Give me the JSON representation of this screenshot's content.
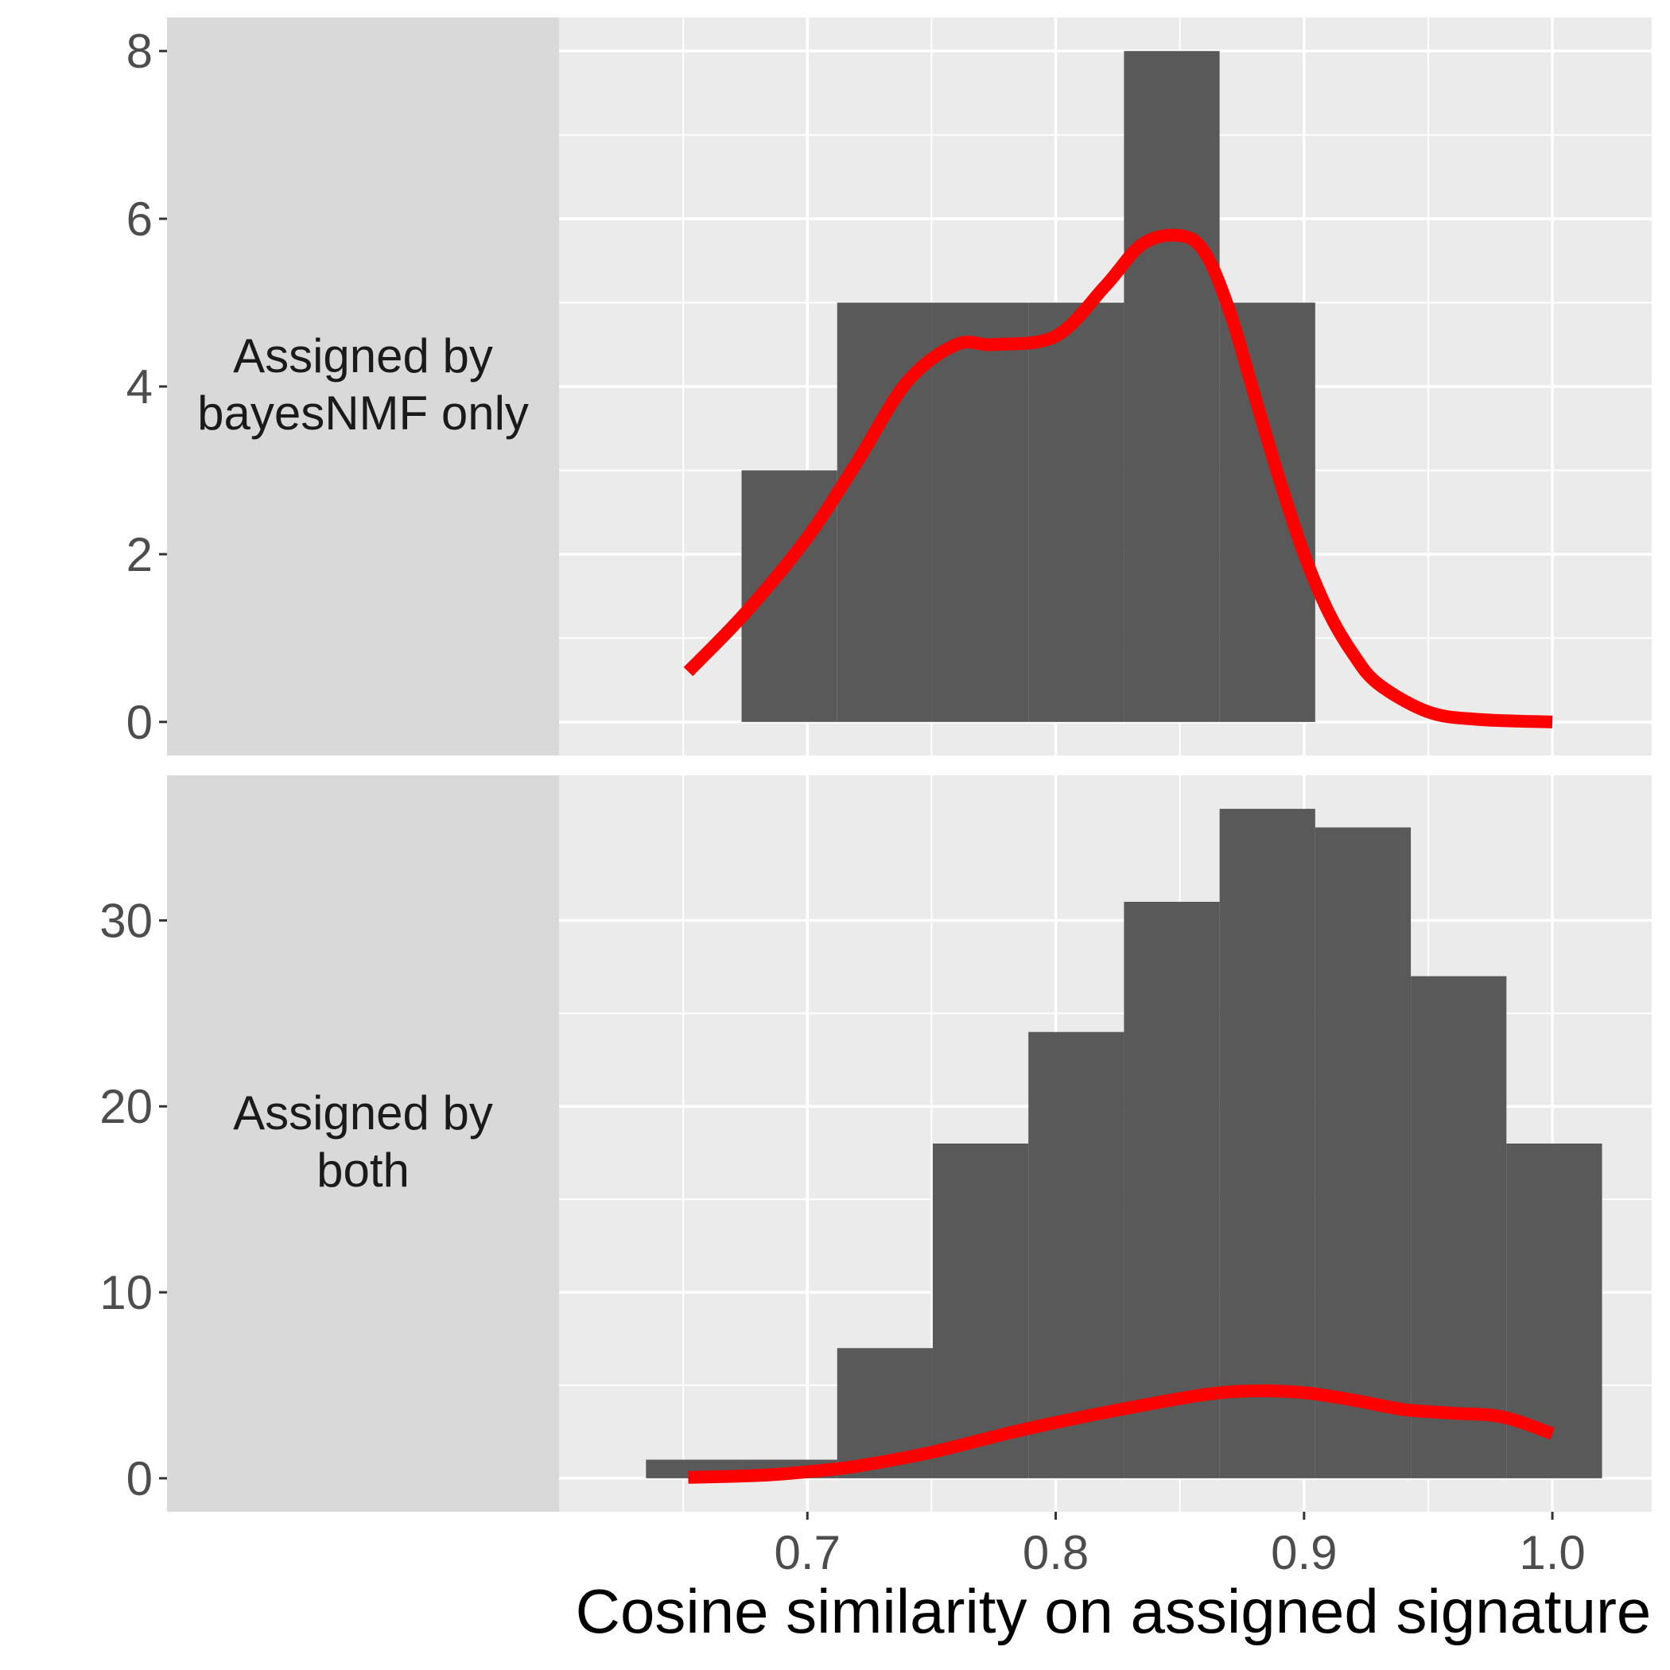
{
  "chart_data": {
    "type": "bar",
    "xlabel": "Cosine similarity on assigned signature",
    "ylabel": "",
    "xlim": [
      0.6,
      1.04
    ],
    "x_ticks": [
      0.7,
      0.8,
      0.9,
      1.0
    ],
    "x_tick_labels": [
      "0.7",
      "0.8",
      "0.9",
      "1.0"
    ],
    "grid": true,
    "bin_width": 0.0385,
    "colors": {
      "bar": "#595959",
      "density": "#ff0000",
      "panel": "#ebebeb",
      "strip": "#d9d9d9",
      "grid": "#ffffff"
    },
    "panels": [
      {
        "label": "Assigned by\nbayesNMF only",
        "label_lines": [
          "Assigned by",
          "bayesNMF only"
        ],
        "ylim": [
          -0.4,
          8.4
        ],
        "y_ticks": [
          0,
          2,
          4,
          6,
          8
        ],
        "y_tick_labels": [
          "0",
          "2",
          "4",
          "6",
          "8"
        ],
        "bins": [
          {
            "x0": 0.6735,
            "x1": 0.712,
            "count": 3
          },
          {
            "x0": 0.712,
            "x1": 0.7505,
            "count": 5
          },
          {
            "x0": 0.7505,
            "x1": 0.789,
            "count": 5
          },
          {
            "x0": 0.789,
            "x1": 0.8275,
            "count": 5
          },
          {
            "x0": 0.8275,
            "x1": 0.866,
            "count": 8
          },
          {
            "x0": 0.866,
            "x1": 0.9045,
            "count": 5
          }
        ],
        "density": {
          "x": [
            0.652,
            0.675,
            0.7,
            0.72,
            0.74,
            0.76,
            0.775,
            0.8,
            0.82,
            0.835,
            0.85,
            0.86,
            0.87,
            0.88,
            0.89,
            0.9,
            0.91,
            0.92,
            0.93,
            0.95,
            0.97,
            1.0
          ],
          "y": [
            0.6,
            1.3,
            2.2,
            3.1,
            4.05,
            4.5,
            4.5,
            4.6,
            5.2,
            5.7,
            5.8,
            5.6,
            4.9,
            3.9,
            2.9,
            2.0,
            1.3,
            0.8,
            0.45,
            0.12,
            0.03,
            0.0
          ]
        }
      },
      {
        "label": "Assigned by\nboth",
        "label_lines": [
          "Assigned by",
          "both"
        ],
        "ylim": [
          -1.8,
          37.8
        ],
        "y_ticks": [
          0,
          10,
          20,
          30
        ],
        "y_tick_labels": [
          "0",
          "10",
          "20",
          "30"
        ],
        "bins": [
          {
            "x0": 0.635,
            "x1": 0.6735,
            "count": 1
          },
          {
            "x0": 0.6735,
            "x1": 0.712,
            "count": 1
          },
          {
            "x0": 0.712,
            "x1": 0.7505,
            "count": 7
          },
          {
            "x0": 0.7505,
            "x1": 0.789,
            "count": 18
          },
          {
            "x0": 0.789,
            "x1": 0.8275,
            "count": 24
          },
          {
            "x0": 0.8275,
            "x1": 0.866,
            "count": 31
          },
          {
            "x0": 0.866,
            "x1": 0.9045,
            "count": 36
          },
          {
            "x0": 0.9045,
            "x1": 0.943,
            "count": 35
          },
          {
            "x0": 0.943,
            "x1": 0.9815,
            "count": 27
          },
          {
            "x0": 0.9815,
            "x1": 1.02,
            "count": 18
          }
        ],
        "density": {
          "x": [
            0.652,
            0.68,
            0.7,
            0.72,
            0.75,
            0.78,
            0.8,
            0.83,
            0.86,
            0.88,
            0.9,
            0.92,
            0.94,
            0.96,
            0.98,
            1.0
          ],
          "y": [
            0.05,
            0.15,
            0.35,
            0.65,
            1.4,
            2.4,
            3.0,
            3.8,
            4.5,
            4.7,
            4.6,
            4.2,
            3.7,
            3.5,
            3.3,
            2.4
          ]
        }
      }
    ]
  }
}
